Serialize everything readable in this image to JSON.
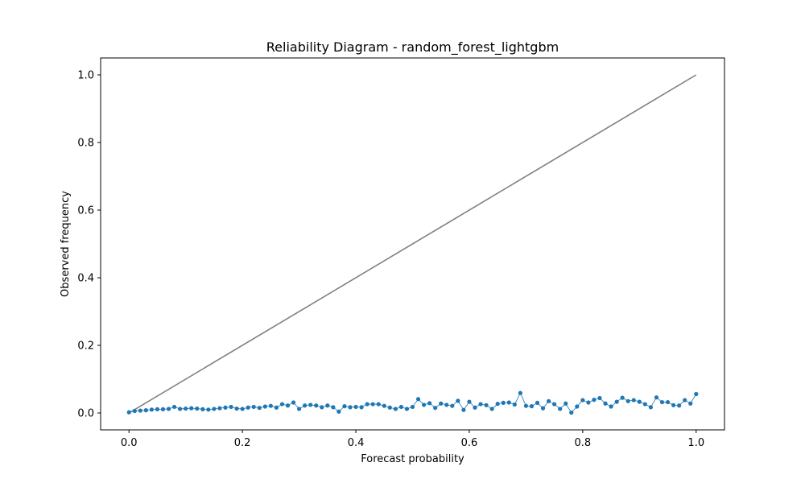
{
  "chart_data": {
    "type": "line",
    "title": "Reliability Diagram - random_forest_lightgbm",
    "xlabel": "Forecast probability",
    "ylabel": "Observed frequency",
    "xlim": [
      -0.05,
      1.05
    ],
    "ylim": [
      -0.05,
      1.05
    ],
    "x_ticks": [
      "0.0",
      "0.2",
      "0.4",
      "0.6",
      "0.8",
      "1.0"
    ],
    "y_ticks": [
      "0.0",
      "0.2",
      "0.4",
      "0.6",
      "0.8",
      "1.0"
    ],
    "grid": false,
    "legend": "none",
    "colors": {
      "reliability": "#1f77b4",
      "diagonal": "#808080"
    },
    "reference_line": {
      "x": [
        0,
        1
      ],
      "y": [
        0,
        1
      ]
    },
    "series": [
      {
        "x": [
          0.0,
          0.01,
          0.02,
          0.03,
          0.04,
          0.05,
          0.06,
          0.07,
          0.08,
          0.09,
          0.1,
          0.11,
          0.12,
          0.13,
          0.14,
          0.15,
          0.16,
          0.17,
          0.18,
          0.19,
          0.2,
          0.21,
          0.22,
          0.23,
          0.24,
          0.25,
          0.26,
          0.27,
          0.28,
          0.29,
          0.3,
          0.31,
          0.32,
          0.33,
          0.34,
          0.35,
          0.36,
          0.37,
          0.38,
          0.39,
          0.4,
          0.41,
          0.42,
          0.43,
          0.44,
          0.45,
          0.46,
          0.47,
          0.48,
          0.49,
          0.5,
          0.51,
          0.52,
          0.53,
          0.54,
          0.55,
          0.56,
          0.57,
          0.58,
          0.59,
          0.6,
          0.61,
          0.62,
          0.63,
          0.64,
          0.65,
          0.66,
          0.67,
          0.68,
          0.69,
          0.7,
          0.71,
          0.72,
          0.73,
          0.74,
          0.75,
          0.76,
          0.77,
          0.78,
          0.79,
          0.8,
          0.81,
          0.82,
          0.83,
          0.84,
          0.85,
          0.86,
          0.87,
          0.88,
          0.89,
          0.9,
          0.91,
          0.92,
          0.93,
          0.94,
          0.95,
          0.96,
          0.97,
          0.98,
          0.99,
          1.0
        ],
        "values": [
          0.002,
          0.006,
          0.007,
          0.008,
          0.01,
          0.011,
          0.011,
          0.012,
          0.018,
          0.012,
          0.013,
          0.014,
          0.013,
          0.011,
          0.01,
          0.012,
          0.014,
          0.016,
          0.018,
          0.013,
          0.012,
          0.016,
          0.018,
          0.015,
          0.019,
          0.021,
          0.016,
          0.026,
          0.022,
          0.031,
          0.012,
          0.022,
          0.024,
          0.022,
          0.017,
          0.022,
          0.017,
          0.004,
          0.02,
          0.017,
          0.018,
          0.017,
          0.026,
          0.026,
          0.026,
          0.021,
          0.016,
          0.012,
          0.018,
          0.012,
          0.018,
          0.041,
          0.024,
          0.029,
          0.015,
          0.028,
          0.024,
          0.021,
          0.036,
          0.009,
          0.033,
          0.016,
          0.026,
          0.023,
          0.012,
          0.027,
          0.03,
          0.031,
          0.025,
          0.059,
          0.021,
          0.02,
          0.03,
          0.014,
          0.035,
          0.026,
          0.012,
          0.028,
          0.001,
          0.019,
          0.038,
          0.031,
          0.039,
          0.044,
          0.028,
          0.019,
          0.033,
          0.045,
          0.035,
          0.038,
          0.033,
          0.026,
          0.017,
          0.046,
          0.032,
          0.032,
          0.023,
          0.022,
          0.038,
          0.028,
          0.056
        ]
      }
    ]
  }
}
